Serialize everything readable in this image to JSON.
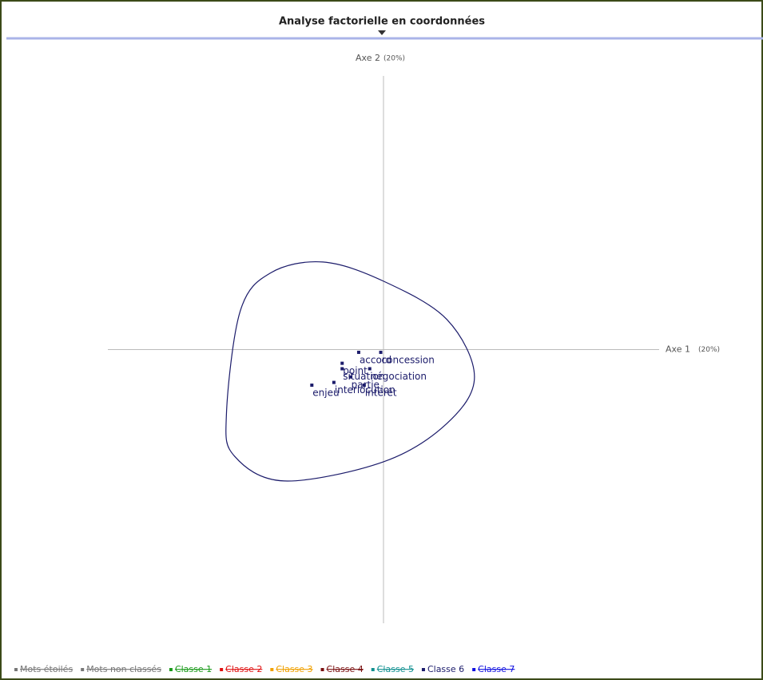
{
  "chart_data": {
    "type": "scatter",
    "title": "Analyse factorielle en coordonnées",
    "x_label": "Axe 1",
    "x_label_note": "(20%)",
    "y_label": "Axe 2",
    "y_label_note": "(20%)",
    "xlim": [
      -1,
      1
    ],
    "ylim": [
      -1,
      1
    ],
    "series": [
      {
        "color": "#1c1c6b",
        "labels": [
          "accord",
          "concession",
          "point",
          "situation",
          "négociation",
          "partie",
          "intérêt",
          "interlocution",
          "enjeu"
        ],
        "x": [
          -0.09,
          -0.01,
          -0.15,
          -0.15,
          -0.05,
          -0.12,
          -0.07,
          -0.18,
          -0.26
        ],
        "values": [
          -0.01,
          -0.01,
          -0.05,
          -0.07,
          -0.07,
          -0.1,
          -0.13,
          -0.12,
          -0.13
        ],
        "contour": {
          "x": [
            -0.22,
            0,
            0.23,
            0.33,
            0.23,
            0,
            -0.36,
            -0.54,
            -0.57,
            -0.52,
            -0.41
          ],
          "y": [
            0.32,
            0.25,
            0.11,
            -0.1,
            -0.27,
            -0.41,
            -0.48,
            -0.39,
            -0.24,
            0.14,
            0.28
          ]
        }
      }
    ],
    "legend": [
      {
        "name": "Mots étoilés",
        "color": "#777777",
        "struck": true
      },
      {
        "name": "Mots non classés",
        "color": "#777777",
        "struck": true
      },
      {
        "name": "Classe 1",
        "color": "#1a9a1a",
        "struck": true
      },
      {
        "name": "Classe 2",
        "color": "#e01010",
        "struck": true
      },
      {
        "name": "Classe 3",
        "color": "#f0a000",
        "struck": true
      },
      {
        "name": "Classe 4",
        "color": "#7a1010",
        "struck": true
      },
      {
        "name": "Classe 5",
        "color": "#109090",
        "struck": true
      },
      {
        "name": "Classe 6",
        "color": "#1c1c6b",
        "struck": false
      },
      {
        "name": "Classe 7",
        "color": "#1010e0",
        "struck": true
      }
    ]
  }
}
